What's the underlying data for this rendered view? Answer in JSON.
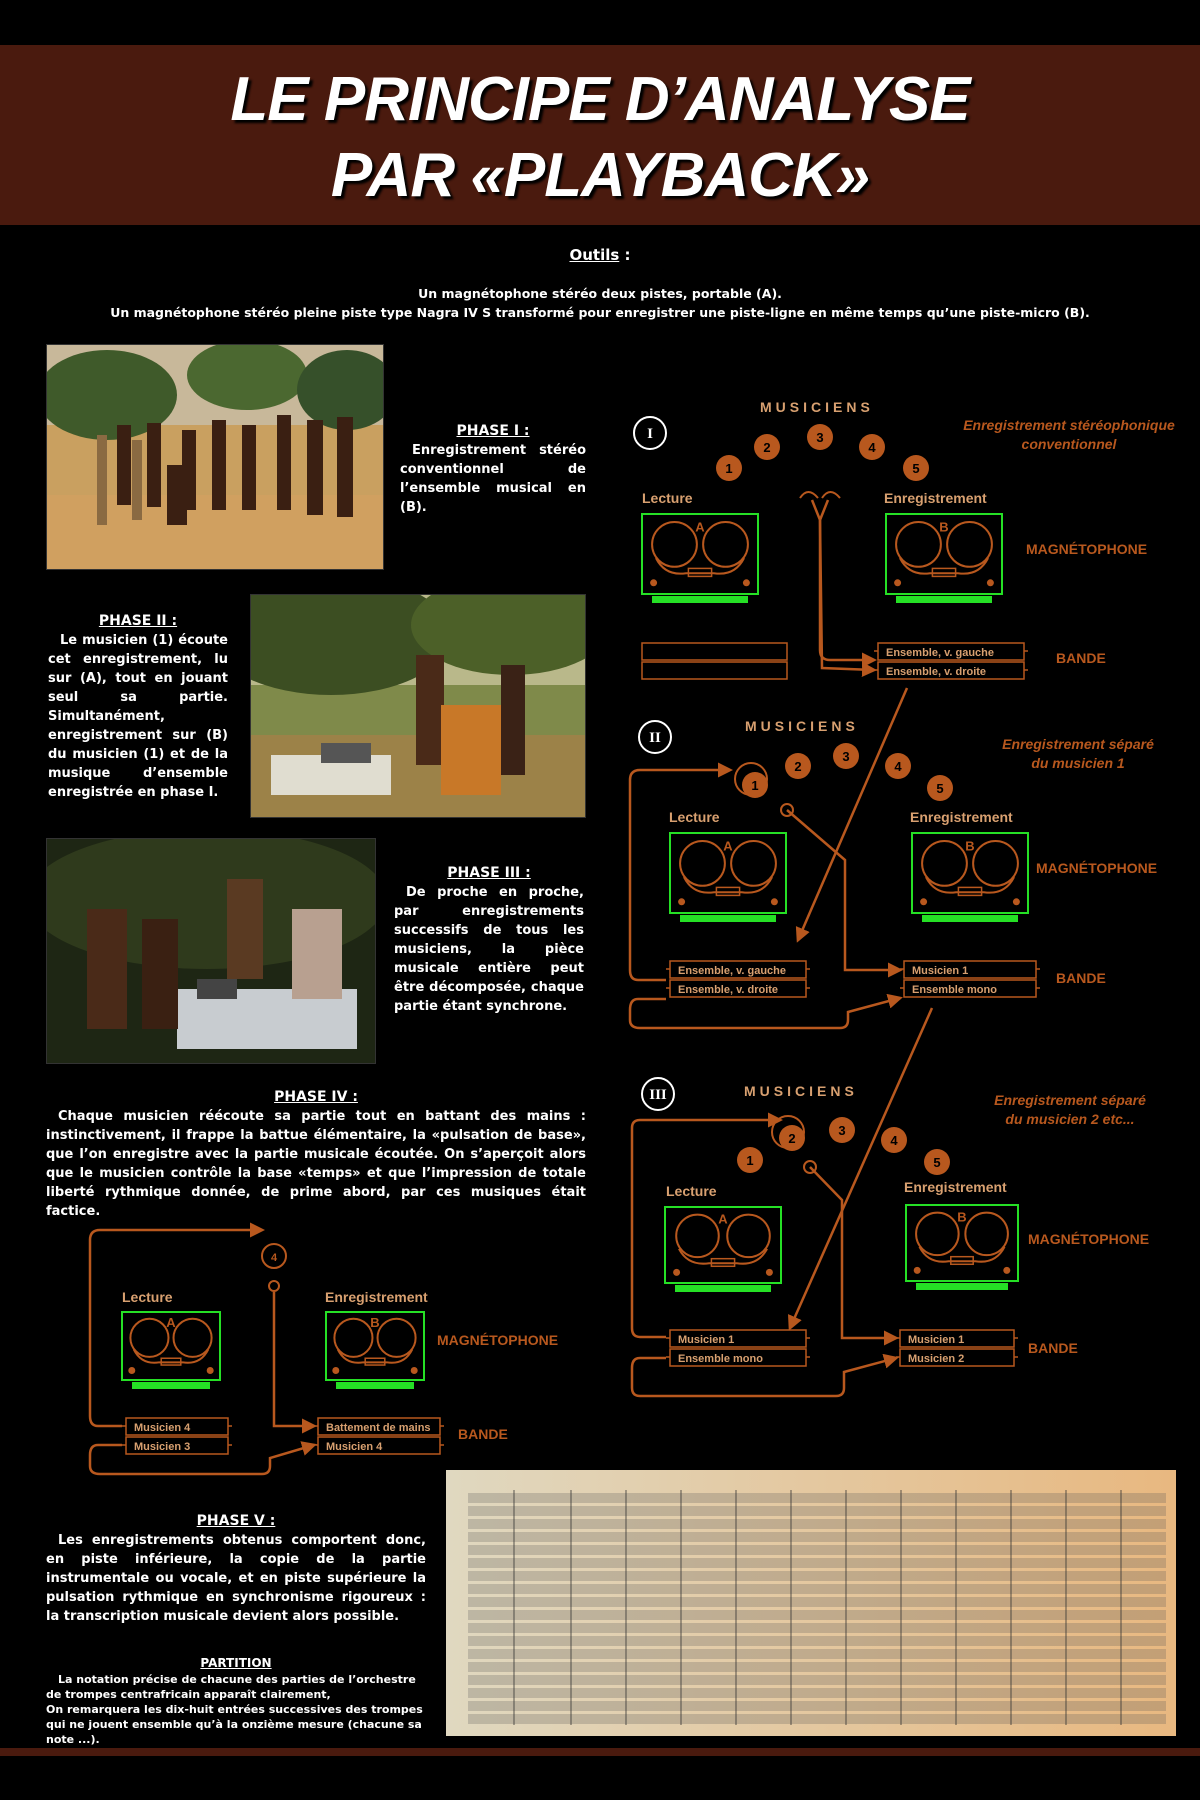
{
  "title": {
    "line1": "LE PRINCIPE D’ANALYSE",
    "line2": "PAR «PLAYBACK»"
  },
  "tools": {
    "heading": "Outils",
    "colon": " :",
    "line1": "Un magnétophone stéréo deux pistes, portable (A).",
    "line2": "Un magnétophone stéréo pleine piste type Nagra IV S transformé pour enregistrer une piste-ligne en même temps qu’une piste-micro (B)."
  },
  "phases": [
    {
      "title": "PHASE I :",
      "body": "Enregistrement stéréo conventionnel de l’ensemble musical en (B)."
    },
    {
      "title": "PHASE II :",
      "body": "Le musicien (1) écoute cet enregistrement, lu sur (A), tout en jouant seul sa partie. Simultanément, enregistrement sur (B) du musicien (1) et de la musique d’ensemble enregistrée en phase I."
    },
    {
      "title": "PHASE III :",
      "body": "De proche en proche, par enregistrements successifs de tous les musiciens, la pièce musicale entière peut être décomposée, chaque partie étant synchrone."
    },
    {
      "title": "PHASE IV :",
      "body": "Chaque musicien réécoute sa partie tout en battant des mains : instinctivement, il frappe la battue élémentaire, la «pulsation de base», que l’on enregistre avec la partie musicale écoutée. On s’aperçoit alors que le musicien contrôle la base «temps» et que l’impression de totale liberté rythmique donnée, de prime abord, par ces musiques était factice."
    },
    {
      "title": "PHASE V :",
      "body": "Les enregistrements obtenus comportent donc, en piste inférieure, la copie de la partie instrumentale ou vocale, et en piste supérieure la pulsation rythmique en synchronisme rigoureux : la transcription musicale devient alors possible."
    }
  ],
  "partition": {
    "title": "PARTITION",
    "line1": "La notation précise de chacune des parties de l’orchestre de trompes centrafricain apparaît clairement,",
    "line2": "On remarquera les dix-huit entrées successives des trompes qui ne jouent ensemble qu’à la onzième mesure (chacune sa note ...)."
  },
  "diagram": {
    "musiciens": "MUSICIENS",
    "lecture": "Lecture",
    "enregistrement": "Enregistrement",
    "magnetophone": "MAGNÉTOPHONE",
    "bande": "BANDE",
    "machine_a": "A",
    "machine_b": "B",
    "roman": [
      "I",
      "II",
      "III"
    ],
    "numbers": [
      "1",
      "2",
      "3",
      "4",
      "5"
    ],
    "phase4_number": "4",
    "captions": [
      [
        "Enregistrement stéréophonique",
        "conventionnel"
      ],
      [
        "Enregistrement séparé",
        "du musicien 1"
      ],
      [
        "Enregistrement séparé",
        "du musicien 2 etc..."
      ]
    ],
    "tapes": {
      "d1_b": [
        "Ensemble, v. gauche",
        "Ensemble, v. droite"
      ],
      "d2_a": [
        "Ensemble, v. gauche",
        "Ensemble, v. droite"
      ],
      "d2_b": [
        "Musicien 1",
        "Ensemble mono"
      ],
      "d3_a": [
        "Musicien 1",
        "Ensemble mono"
      ],
      "d3_b": [
        "Musicien 1",
        "Musicien 2"
      ],
      "d4_a": [
        "Musicien 4",
        "Musicien 3"
      ],
      "d4_b": [
        "Battement de mains",
        "Musicien 4"
      ]
    },
    "colors": {
      "orange": "#b8581e",
      "green": "#25e025",
      "label": "#d8a070"
    }
  }
}
